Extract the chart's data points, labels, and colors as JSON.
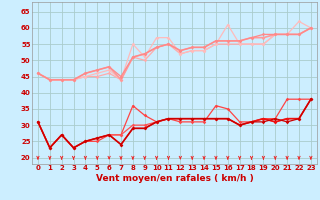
{
  "xlabel": "Vent moyen/en rafales ( km/h )",
  "background_color": "#cceeff",
  "grid_color": "#aacccc",
  "x": [
    0,
    1,
    2,
    3,
    4,
    5,
    6,
    7,
    8,
    9,
    10,
    11,
    12,
    13,
    14,
    15,
    16,
    17,
    18,
    19,
    20,
    21,
    22,
    23
  ],
  "lines_upper": [
    {
      "y": [
        46,
        44,
        44,
        44,
        45,
        45,
        46,
        44,
        51,
        50,
        54,
        55,
        52,
        53,
        53,
        55,
        55,
        55,
        55,
        55,
        58,
        58,
        58,
        60
      ],
      "color": "#ffaaaa",
      "lw": 0.9
    },
    {
      "y": [
        46,
        44,
        44,
        44,
        45,
        46,
        47,
        44,
        55,
        51,
        57,
        57,
        52,
        53,
        53,
        55,
        61,
        55,
        55,
        55,
        58,
        58,
        62,
        60
      ],
      "color": "#ffbbbb",
      "lw": 0.9
    },
    {
      "y": [
        46,
        44,
        44,
        44,
        46,
        47,
        48,
        44,
        51,
        52,
        54,
        55,
        53,
        54,
        54,
        56,
        56,
        56,
        57,
        57,
        58,
        58,
        58,
        60
      ],
      "color": "#ff9999",
      "lw": 1.2
    },
    {
      "y": [
        46,
        44,
        44,
        44,
        46,
        47,
        48,
        45,
        51,
        52,
        54,
        55,
        53,
        54,
        54,
        56,
        56,
        56,
        57,
        58,
        58,
        58,
        58,
        60
      ],
      "color": "#ff8888",
      "lw": 0.9
    }
  ],
  "lines_lower": [
    {
      "y": [
        31,
        23,
        27,
        23,
        25,
        25,
        27,
        27,
        36,
        33,
        31,
        32,
        31,
        31,
        31,
        36,
        35,
        31,
        31,
        32,
        32,
        38,
        38,
        38
      ],
      "color": "#ff4444",
      "lw": 0.9
    },
    {
      "y": [
        31,
        23,
        27,
        23,
        25,
        26,
        27,
        27,
        30,
        30,
        31,
        32,
        32,
        32,
        32,
        32,
        32,
        30,
        31,
        32,
        31,
        32,
        32,
        38
      ],
      "color": "#ff5555",
      "lw": 0.9
    },
    {
      "y": [
        31,
        23,
        27,
        23,
        25,
        26,
        27,
        24,
        29,
        29,
        31,
        32,
        32,
        32,
        32,
        32,
        32,
        30,
        31,
        32,
        31,
        32,
        32,
        38
      ],
      "color": "#ee1111",
      "lw": 1.2
    },
    {
      "y": [
        31,
        23,
        27,
        23,
        25,
        26,
        27,
        24,
        29,
        29,
        31,
        32,
        32,
        32,
        32,
        32,
        32,
        30,
        31,
        31,
        32,
        31,
        32,
        38
      ],
      "color": "#cc0000",
      "lw": 0.9
    }
  ],
  "arrow_color": "#ee2222",
  "ylim": [
    18,
    68
  ],
  "yticks": [
    20,
    25,
    30,
    35,
    40,
    45,
    50,
    55,
    60,
    65
  ],
  "xticks": [
    0,
    1,
    2,
    3,
    4,
    5,
    6,
    7,
    8,
    9,
    10,
    11,
    12,
    13,
    14,
    15,
    16,
    17,
    18,
    19,
    20,
    21,
    22,
    23
  ],
  "tick_fontsize": 5.0,
  "xlabel_fontsize": 6.5,
  "marker": "D",
  "markersize": 1.8
}
